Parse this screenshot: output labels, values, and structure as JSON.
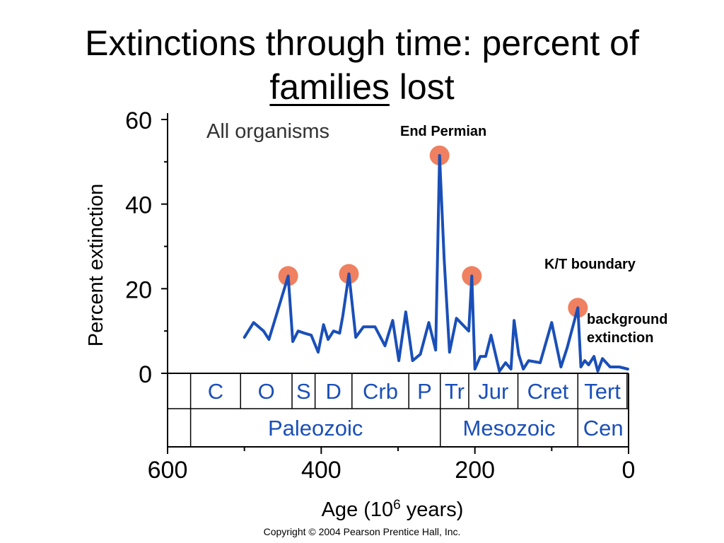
{
  "slide": {
    "title_line1": "Extinctions through time: percent of",
    "title_underlined": "families",
    "title_rest": " lost",
    "copyright": "Copyright © 2004 Pearson Prentice Hall, Inc."
  },
  "chart_data": {
    "type": "line",
    "title": "All organisms",
    "xlabel": "Age (10",
    "xlabel_superscript": "6",
    "xlabel_suffix": " years)",
    "ylabel": "Percent extinction",
    "xlim": [
      600,
      0
    ],
    "ylim": [
      0,
      60
    ],
    "x_ticks": [
      600,
      400,
      200,
      0
    ],
    "y_ticks": [
      0,
      20,
      40,
      60
    ],
    "grid": false,
    "line_color": "#1a4fb8",
    "marker_color": "#ef8060",
    "series": [
      {
        "x": [
          500,
          488,
          475,
          468,
          443,
          437,
          430,
          422,
          413,
          404,
          397,
          391,
          384,
          376,
          372,
          364,
          355,
          345,
          330,
          317,
          307,
          299,
          290,
          281,
          271,
          260,
          251,
          246,
          240,
          233,
          224,
          208,
          204,
          200,
          193,
          186,
          179,
          168,
          160,
          153,
          149,
          143,
          137,
          130,
          115,
          100,
          88,
          80,
          66,
          62,
          57,
          52,
          45,
          40,
          34,
          24,
          12,
          1
        ],
        "y": [
          8.5,
          12,
          10,
          8,
          23,
          7.5,
          10,
          9.5,
          9,
          5,
          11.5,
          8,
          10,
          9.5,
          13.5,
          23.5,
          8.5,
          11,
          11,
          6.5,
          12.5,
          3,
          14.5,
          3,
          4.5,
          12,
          5.5,
          51.5,
          27,
          5,
          13,
          10,
          23,
          1,
          4,
          4,
          9,
          0.5,
          2.5,
          1,
          12.5,
          4.5,
          1,
          3,
          2.5,
          12,
          1.5,
          6,
          15.5,
          1.5,
          3,
          2,
          4,
          0.5,
          3.5,
          1.5,
          1.5,
          1
        ]
      }
    ],
    "annotations": [
      {
        "label": "End Permian",
        "x": 246,
        "y": 51.5
      },
      {
        "label": "K/T boundary",
        "x": 66,
        "y": 15.5
      },
      {
        "label": "background extinction",
        "x": 66,
        "y": 15.5
      }
    ],
    "highlighted_events": [
      {
        "x": 443,
        "y": 23
      },
      {
        "x": 364,
        "y": 23.5
      },
      {
        "x": 246,
        "y": 51.5
      },
      {
        "x": 204,
        "y": 23
      },
      {
        "x": 66,
        "y": 15.5
      }
    ],
    "period_bands": [
      {
        "label": "C",
        "start": 570,
        "end": 505
      },
      {
        "label": "O",
        "start": 505,
        "end": 438
      },
      {
        "label": "S",
        "start": 438,
        "end": 408
      },
      {
        "label": "D",
        "start": 408,
        "end": 360
      },
      {
        "label": "Crb",
        "start": 360,
        "end": 286
      },
      {
        "label": "P",
        "start": 286,
        "end": 245
      },
      {
        "label": "Tr",
        "start": 245,
        "end": 208
      },
      {
        "label": "Jur",
        "start": 208,
        "end": 144
      },
      {
        "label": "Cret",
        "start": 144,
        "end": 66
      },
      {
        "label": "Tert",
        "start": 66,
        "end": 2
      },
      {
        "label": "",
        "start": 2,
        "end": 0
      }
    ],
    "era_bands": [
      {
        "label": "Paleozoic",
        "start": 570,
        "end": 245
      },
      {
        "label": "Mesozoic",
        "start": 245,
        "end": 66
      },
      {
        "label": "Cen",
        "start": 66,
        "end": 0
      }
    ]
  }
}
